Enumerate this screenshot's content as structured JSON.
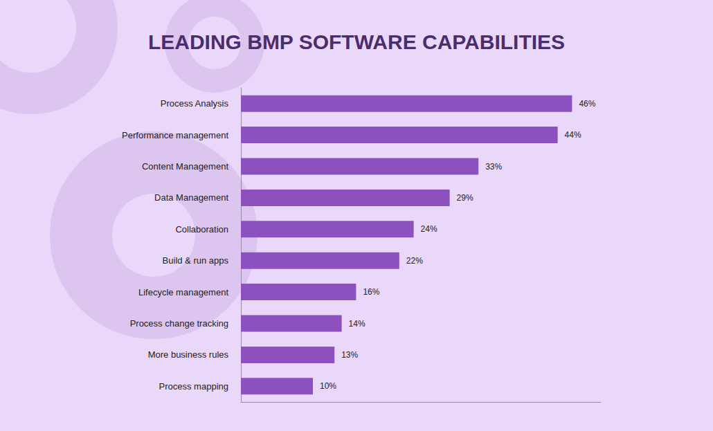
{
  "chart_data": {
    "type": "bar",
    "title": "LEADING BMP SOFTWARE CAPABILITIES",
    "orientation": "horizontal",
    "categories": [
      "Process Analysis",
      "Performance management",
      "Content Management",
      "Data Management",
      "Collaboration",
      "Build & run apps",
      "Lifecycle management",
      "Process change tracking",
      "More business rules",
      "Process mapping"
    ],
    "values": [
      46,
      44,
      33,
      29,
      24,
      22,
      16,
      14,
      13,
      10
    ],
    "value_labels": [
      "46%",
      "44%",
      "33%",
      "29%",
      "24%",
      "22%",
      "16%",
      "14%",
      "13%",
      "10%"
    ],
    "color": "#8c50bf",
    "xlim": [
      0,
      50
    ],
    "grid": false,
    "data_labels": true,
    "tick_labels": "y"
  }
}
